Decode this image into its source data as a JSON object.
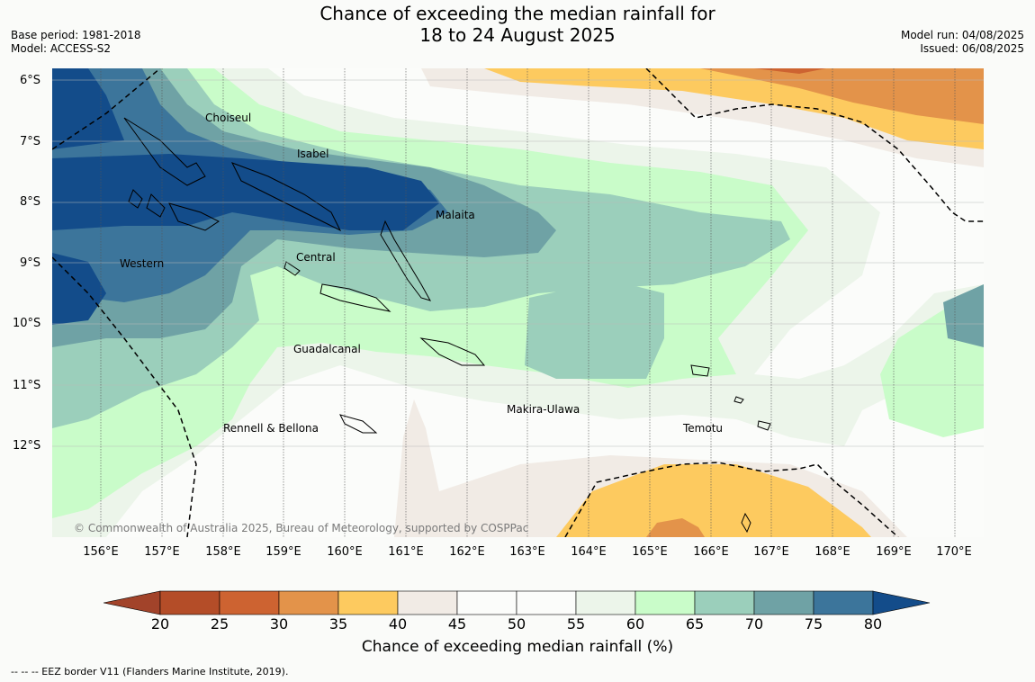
{
  "title": {
    "line1": "Chance of exceeding the median rainfall for",
    "line2": "18 to 24 August 2025"
  },
  "meta_left": {
    "base_period": "Base period: 1981-2018",
    "model": "Model: ACCESS-S2"
  },
  "meta_right": {
    "model_run": "Model run: 04/08/2025",
    "issued": "Issued: 06/08/2025"
  },
  "lat_labels": [
    "6°S",
    "7°S",
    "8°S",
    "9°S",
    "10°S",
    "11°S",
    "12°S"
  ],
  "lon_labels": [
    "156°E",
    "157°E",
    "158°E",
    "159°E",
    "160°E",
    "161°E",
    "162°E",
    "163°E",
    "164°E",
    "165°E",
    "166°E",
    "167°E",
    "168°E",
    "169°E",
    "170°E"
  ],
  "regions": {
    "choiseul": "Choiseul",
    "isabel": "Isabel",
    "malaita": "Malaita",
    "central": "Central",
    "western": "Western",
    "guadalcanal": "Guadalcanal",
    "makira": "Makira-Ulawa",
    "rennell": "Rennell & Bellona",
    "temotu": "Temotu"
  },
  "copyright": "© Commonwealth of Australia 2025, Bureau of Meteorology, supported by COSPPac",
  "colorbar": {
    "ticks": [
      "20",
      "25",
      "30",
      "35",
      "40",
      "45",
      "50",
      "55",
      "60",
      "65",
      "70",
      "75",
      "80"
    ],
    "colors": [
      "#a2432a",
      "#b44d28",
      "#cd6331",
      "#e3934a",
      "#fdca5f",
      "#f1ebe5",
      "#fbfcfa",
      "#fbfcfa",
      "#ecf5ea",
      "#c9fcc9",
      "#9bcfbb",
      "#6fa2a5",
      "#3c759b",
      "#134c8a"
    ],
    "title": "Chance of exceeding median rainfall (%)"
  },
  "footnote": "--  --  -- EEZ border V11 (Flanders Marine Institute, 2019).",
  "colors": {
    "c_dark_blue": "#134c8a",
    "c_blue": "#3c759b",
    "c_teal": "#6fa2a5",
    "c_mint": "#9bcfbb",
    "c_lightgreen": "#c9fcc9",
    "c_palegreen": "#ecf5ea",
    "c_white": "#fbfcfa",
    "c_beige": "#f1ebe5",
    "c_yellow": "#fdca5f",
    "c_orange": "#e3934a",
    "c_darkorange": "#cd6331"
  }
}
